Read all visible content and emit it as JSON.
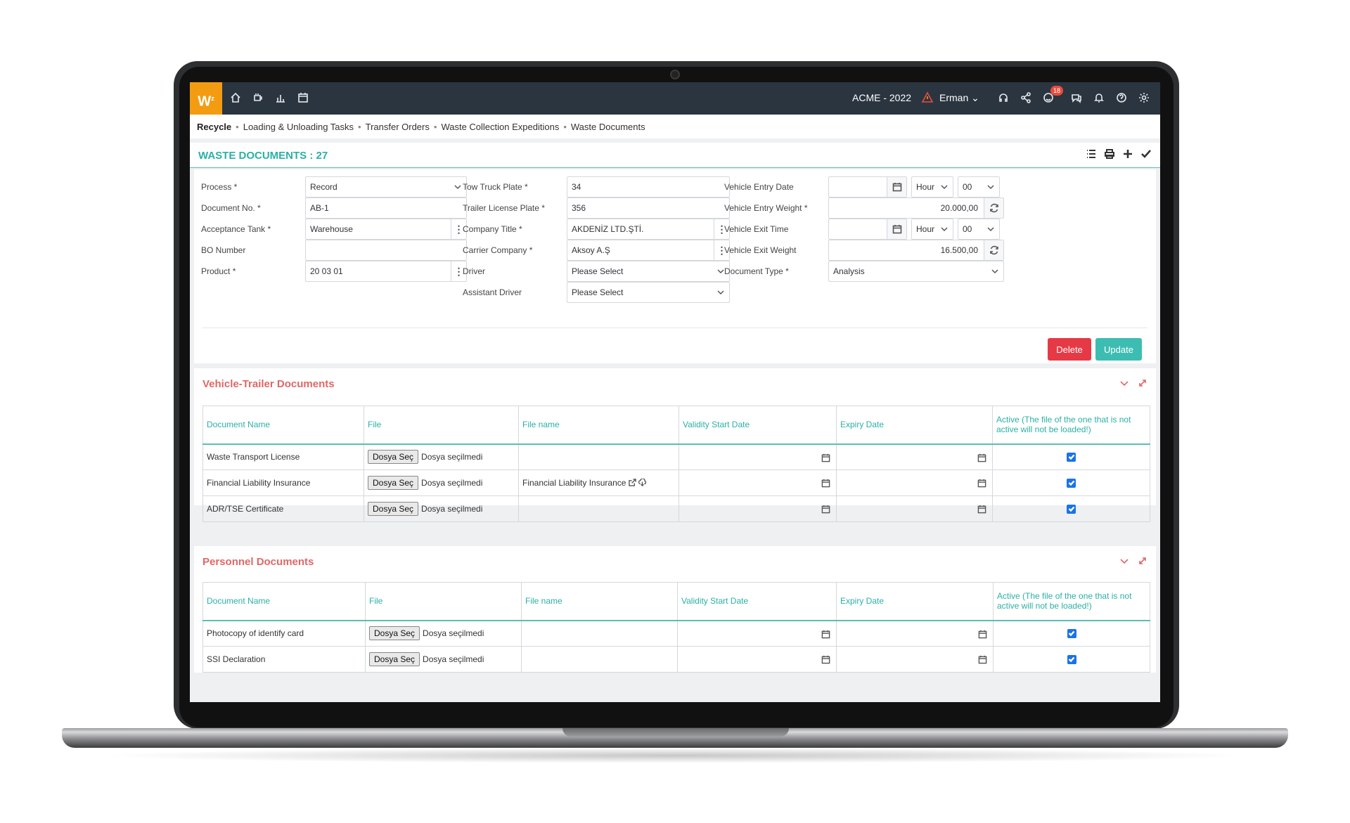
{
  "app": {
    "logo": "W",
    "logo_sup": "z",
    "company": "ACME - 2022",
    "user": "Erman",
    "notification_count": "18",
    "colors": {
      "topbar": "#2b3540",
      "logo": "#f39c12",
      "accent": "#2ab0a6",
      "section_title": "#e06767",
      "delete": "#e63946",
      "update": "#3dbdb2"
    }
  },
  "breadcrumb": [
    "Recycle",
    "Loading & Unloading Tasks",
    "Transfer Orders",
    "Waste Collection Expeditions",
    "Waste Documents"
  ],
  "page": {
    "title": "WASTE DOCUMENTS : 27"
  },
  "form": {
    "col1": [
      {
        "label": "Process *",
        "value": "Record",
        "kind": "select"
      },
      {
        "label": "Document No. *",
        "value": "AB-1",
        "kind": "text"
      },
      {
        "label": "Acceptance Tank *",
        "value": "Warehouse",
        "kind": "lookup"
      },
      {
        "label": "BO Number",
        "value": "",
        "kind": "text"
      },
      {
        "label": "Product *",
        "value": "20 03 01",
        "kind": "lookup"
      }
    ],
    "col2": [
      {
        "label": "Tow Truck Plate *",
        "value": "34",
        "kind": "text"
      },
      {
        "label": "Trailer License Plate *",
        "value": "356",
        "kind": "text"
      },
      {
        "label": "Company Title *",
        "value": "AKDENİZ LTD.ŞTİ.",
        "kind": "lookup"
      },
      {
        "label": "Carrier Company *",
        "value": "Aksoy A.Ş",
        "kind": "lookup"
      },
      {
        "label": "Driver",
        "value": "Please Select",
        "kind": "select"
      },
      {
        "label": "Assistant Driver",
        "value": "Please Select",
        "kind": "select"
      }
    ],
    "col3": {
      "entry_date_label": "Vehicle Entry Date",
      "entry_date_value": "",
      "entry_hour": "Hour",
      "entry_min": "00",
      "entry_weight_label": "Vehicle Entry Weight *",
      "entry_weight_value": "20.000,00",
      "exit_time_label": "Vehicle Exit Time",
      "exit_time_value": "",
      "exit_hour": "Hour",
      "exit_min": "00",
      "exit_weight_label": "Vehicle Exit Weight",
      "exit_weight_value": "16.500,00",
      "doc_type_label": "Document Type *",
      "doc_type_value": "Analysis"
    },
    "delete_label": "Delete",
    "update_label": "Update"
  },
  "vehicle_docs": {
    "title": "Vehicle-Trailer Documents",
    "columns": [
      "Document Name",
      "File",
      "File name",
      "Validity Start Date",
      "Expiry Date",
      "Active (The file of the one that is not active will not be loaded!)"
    ],
    "choose_label": "Dosya Seç",
    "no_file_label": "Dosya seçilmedi",
    "rows": [
      {
        "name": "Waste Transport License",
        "file_name": "",
        "active": true
      },
      {
        "name": "Financial Liability Insurance",
        "file_name": "Financial Liability Insurance",
        "active": true
      },
      {
        "name": "ADR/TSE Certificate",
        "file_name": "",
        "active": true
      }
    ]
  },
  "personnel_docs": {
    "title": "Personnel Documents",
    "columns": [
      "Document Name",
      "File",
      "File name",
      "Validity Start Date",
      "Expiry Date",
      "Active (The file of the one that is not active will not be loaded!)"
    ],
    "choose_label": "Dosya Seç",
    "no_file_label": "Dosya seçilmedi",
    "rows": [
      {
        "name": "Photocopy of identify card",
        "file_name": "",
        "active": true
      },
      {
        "name": "SSI Declaration",
        "file_name": "",
        "active": true
      }
    ]
  }
}
